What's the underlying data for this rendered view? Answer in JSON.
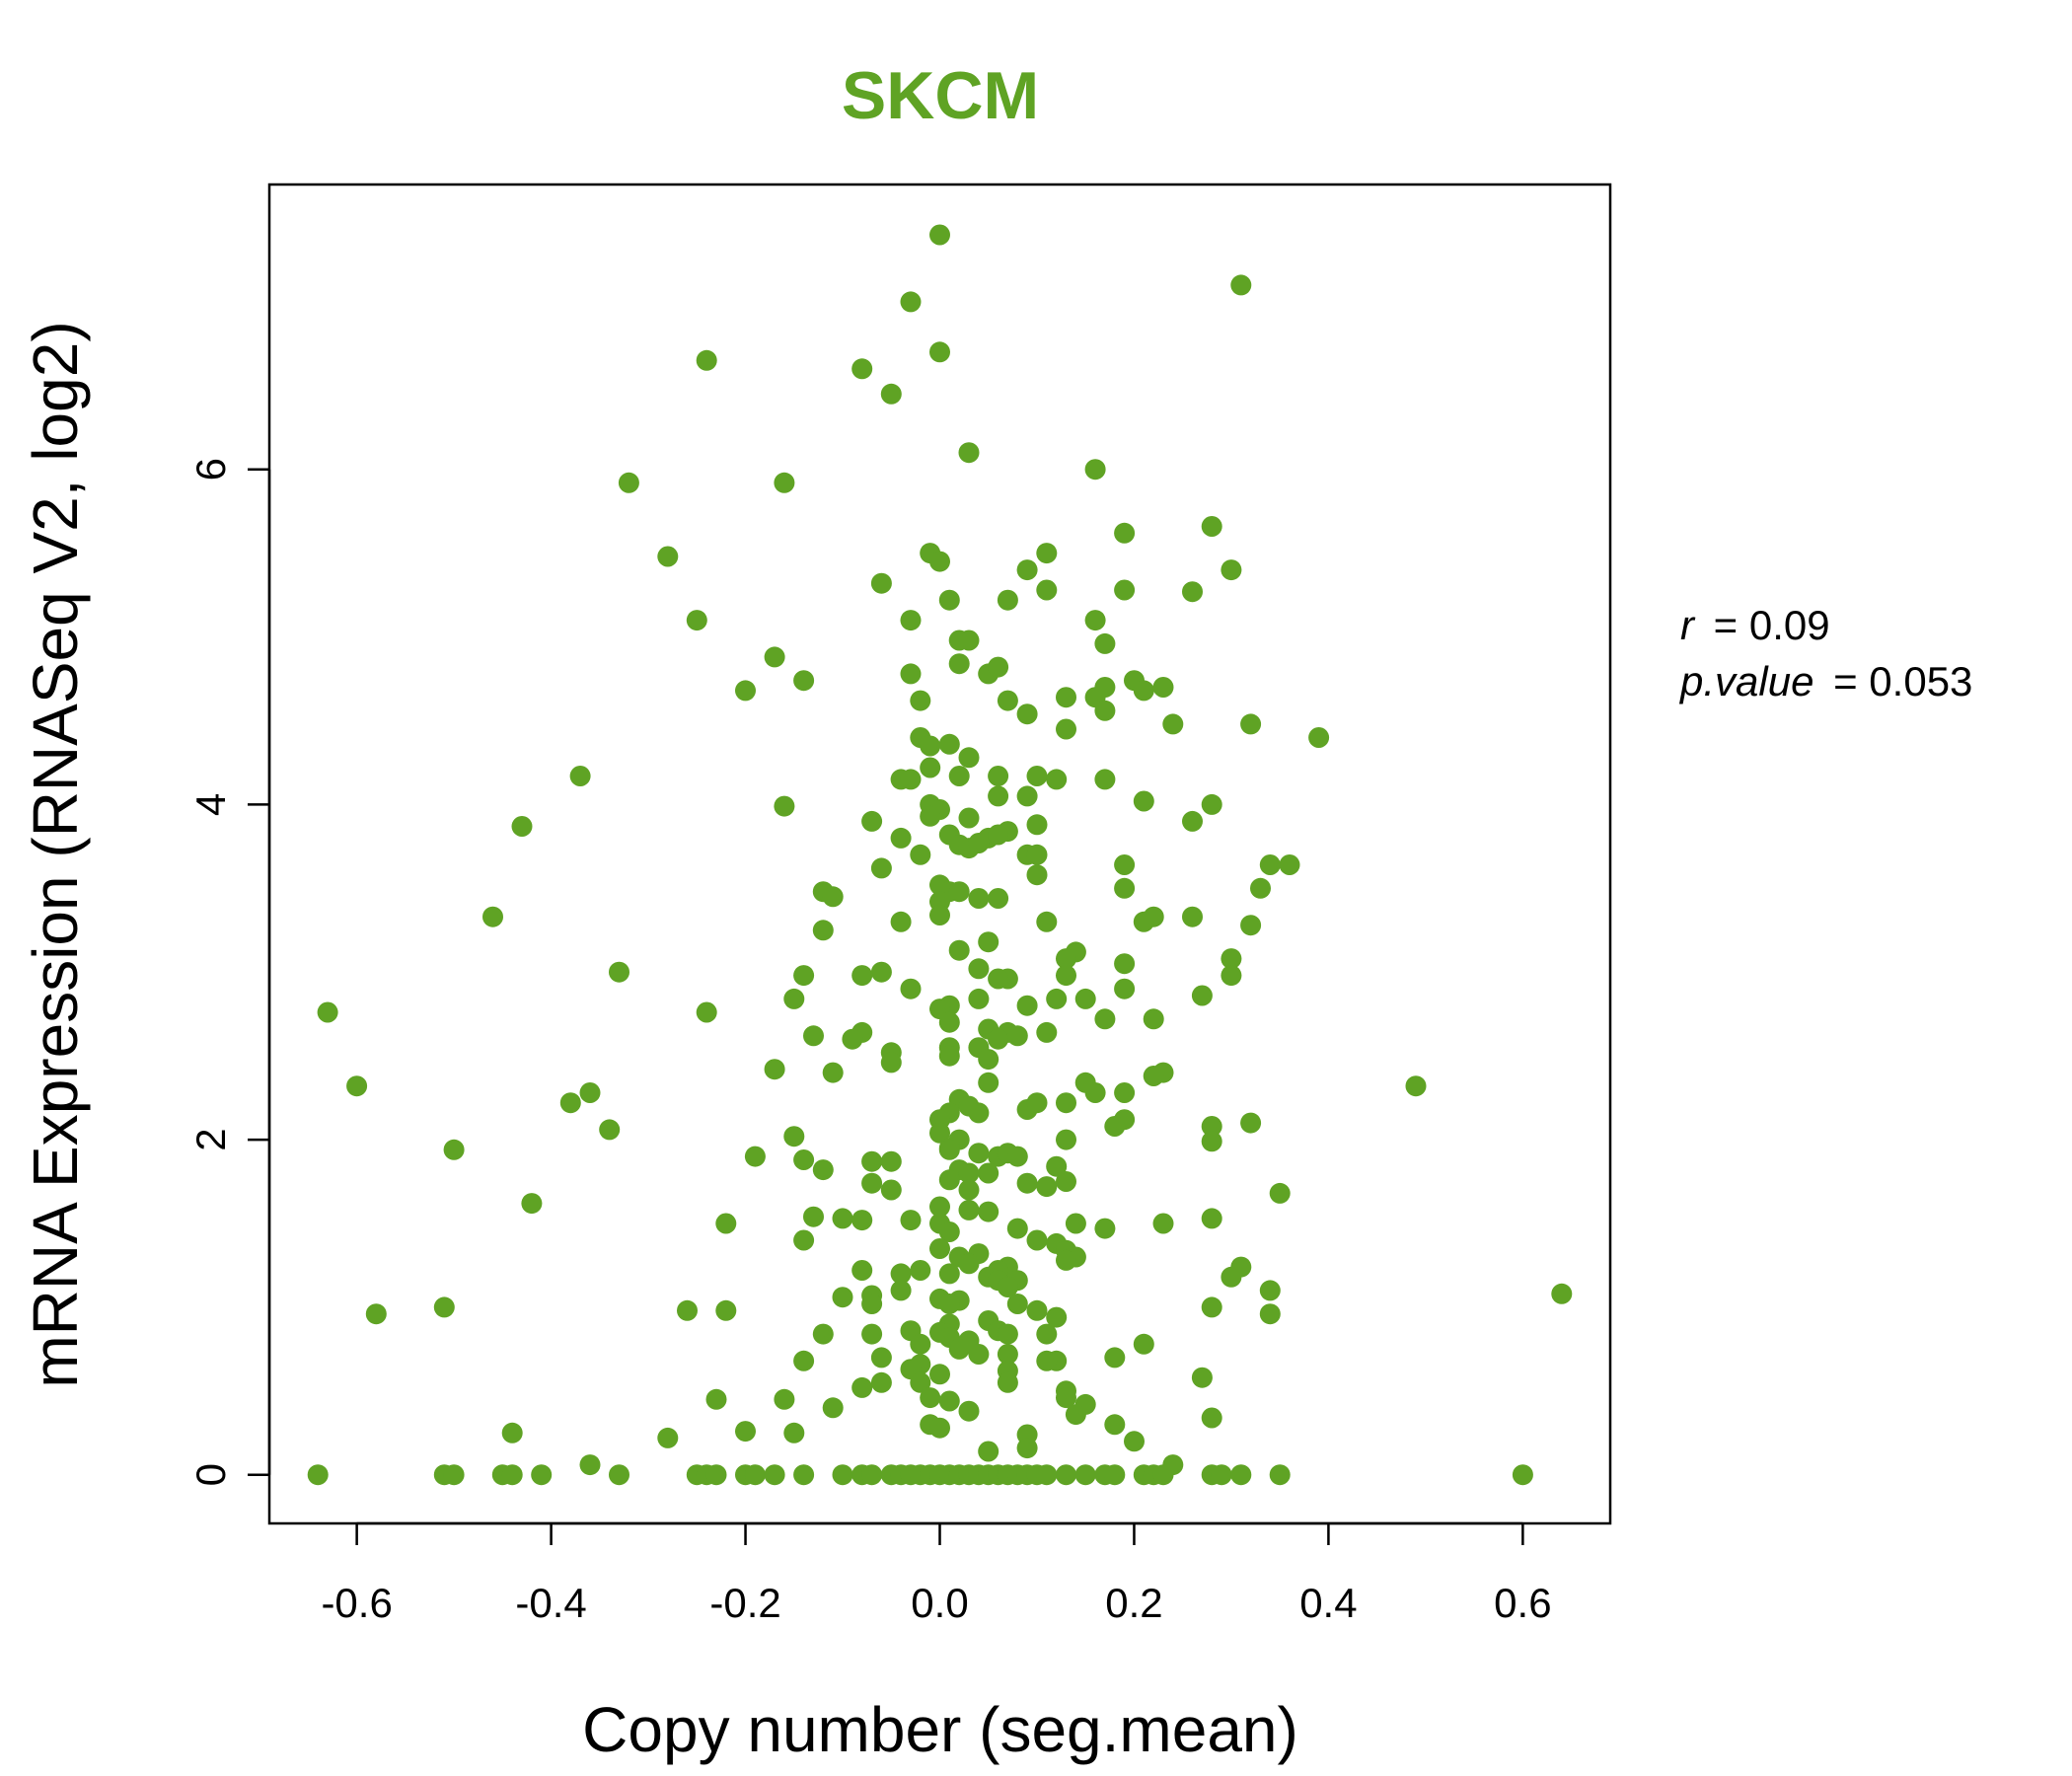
{
  "colors": {
    "point": "#5fa324",
    "title": "#5fa324",
    "axis": "#000000"
  },
  "stats": {
    "r_label": "r",
    "r_eq": "= 0.09",
    "p_label": "p.value",
    "p_eq": "= 0.053"
  },
  "chart_data": {
    "type": "scatter",
    "title": "SKCM",
    "xlabel": "Copy number (seg.mean)",
    "ylabel": "mRNA Expression (RNASeq V2, log2)",
    "xlim": [
      -0.69,
      0.69
    ],
    "ylim": [
      -0.29,
      7.7
    ],
    "xticks": [
      -0.6,
      -0.4,
      -0.2,
      0.0,
      0.2,
      0.4,
      0.6
    ],
    "xtick_labels": [
      "-0.6",
      "-0.4",
      "-0.2",
      "0.0",
      "0.2",
      "0.4",
      "0.6"
    ],
    "yticks": [
      0,
      2,
      4,
      6
    ],
    "ytick_labels": [
      "0",
      "2",
      "4",
      "6"
    ],
    "grid": false,
    "points": [
      [
        0.0,
        7.4
      ],
      [
        0.31,
        7.1
      ],
      [
        -0.03,
        7.0
      ],
      [
        0.0,
        6.7
      ],
      [
        -0.24,
        6.65
      ],
      [
        -0.08,
        6.6
      ],
      [
        -0.05,
        6.45
      ],
      [
        0.03,
        6.1
      ],
      [
        0.16,
        6.0
      ],
      [
        -0.32,
        5.92
      ],
      [
        -0.16,
        5.92
      ],
      [
        0.28,
        5.66
      ],
      [
        0.19,
        5.62
      ],
      [
        -0.28,
        5.48
      ],
      [
        -0.01,
        5.5
      ],
      [
        0.0,
        5.45
      ],
      [
        0.11,
        5.5
      ],
      [
        0.09,
        5.4
      ],
      [
        0.3,
        5.4
      ],
      [
        -0.06,
        5.32
      ],
      [
        0.11,
        5.28
      ],
      [
        0.19,
        5.28
      ],
      [
        0.26,
        5.27
      ],
      [
        0.01,
        5.22
      ],
      [
        0.07,
        5.22
      ],
      [
        -0.25,
        5.1
      ],
      [
        -0.03,
        5.1
      ],
      [
        0.16,
        5.1
      ],
      [
        0.02,
        4.98
      ],
      [
        0.03,
        4.98
      ],
      [
        0.17,
        4.96
      ],
      [
        -0.17,
        4.88
      ],
      [
        0.02,
        4.84
      ],
      [
        0.05,
        4.78
      ],
      [
        0.06,
        4.82
      ],
      [
        -0.03,
        4.78
      ],
      [
        -0.14,
        4.74
      ],
      [
        -0.2,
        4.68
      ],
      [
        0.2,
        4.74
      ],
      [
        0.17,
        4.7
      ],
      [
        0.21,
        4.68
      ],
      [
        0.23,
        4.7
      ],
      [
        0.16,
        4.64
      ],
      [
        0.13,
        4.64
      ],
      [
        -0.02,
        4.62
      ],
      [
        0.07,
        4.62
      ],
      [
        0.17,
        4.56
      ],
      [
        0.09,
        4.54
      ],
      [
        0.32,
        4.48
      ],
      [
        0.24,
        4.48
      ],
      [
        0.13,
        4.45
      ],
      [
        0.39,
        4.4
      ],
      [
        -0.02,
        4.4
      ],
      [
        -0.01,
        4.35
      ],
      [
        0.01,
        4.36
      ],
      [
        0.03,
        4.28
      ],
      [
        -0.01,
        4.22
      ],
      [
        -0.37,
        4.17
      ],
      [
        -0.04,
        4.15
      ],
      [
        -0.03,
        4.15
      ],
      [
        0.02,
        4.17
      ],
      [
        0.06,
        4.17
      ],
      [
        0.1,
        4.17
      ],
      [
        0.12,
        4.15
      ],
      [
        0.17,
        4.15
      ],
      [
        0.06,
        4.05
      ],
      [
        0.09,
        4.05
      ],
      [
        0.21,
        4.02
      ],
      [
        0.28,
        4.0
      ],
      [
        -0.16,
        3.99
      ],
      [
        -0.01,
        4.0
      ],
      [
        0.0,
        3.97
      ],
      [
        -0.01,
        3.93
      ],
      [
        0.03,
        3.92
      ],
      [
        0.26,
        3.9
      ],
      [
        -0.07,
        3.9
      ],
      [
        0.1,
        3.88
      ],
      [
        -0.43,
        3.87
      ],
      [
        0.01,
        3.82
      ],
      [
        0.07,
        3.84
      ],
      [
        -0.04,
        3.8
      ],
      [
        0.02,
        3.76
      ],
      [
        0.03,
        3.74
      ],
      [
        0.05,
        3.8
      ],
      [
        0.06,
        3.82
      ],
      [
        0.04,
        3.77
      ],
      [
        0.09,
        3.7
      ],
      [
        0.1,
        3.7
      ],
      [
        -0.02,
        3.7
      ],
      [
        0.36,
        3.64
      ],
      [
        0.34,
        3.64
      ],
      [
        0.19,
        3.64
      ],
      [
        -0.06,
        3.62
      ],
      [
        0.1,
        3.58
      ],
      [
        0.19,
        3.5
      ],
      [
        0.33,
        3.5
      ],
      [
        -0.12,
        3.48
      ],
      [
        -0.11,
        3.45
      ],
      [
        0.0,
        3.52
      ],
      [
        0.01,
        3.48
      ],
      [
        0.02,
        3.48
      ],
      [
        0.0,
        3.42
      ],
      [
        0.04,
        3.44
      ],
      [
        0.06,
        3.44
      ],
      [
        -0.46,
        3.33
      ],
      [
        0.22,
        3.33
      ],
      [
        0.26,
        3.33
      ],
      [
        0.21,
        3.3
      ],
      [
        0.0,
        3.34
      ],
      [
        -0.04,
        3.3
      ],
      [
        0.11,
        3.3
      ],
      [
        0.32,
        3.28
      ],
      [
        -0.12,
        3.25
      ],
      [
        0.05,
        3.18
      ],
      [
        0.02,
        3.13
      ],
      [
        0.14,
        3.12
      ],
      [
        0.13,
        3.08
      ],
      [
        0.3,
        3.08
      ],
      [
        0.19,
        3.05
      ],
      [
        0.04,
        3.02
      ],
      [
        -0.33,
        3.0
      ],
      [
        -0.06,
        3.0
      ],
      [
        -0.08,
        2.98
      ],
      [
        -0.14,
        2.98
      ],
      [
        0.07,
        2.96
      ],
      [
        0.06,
        2.96
      ],
      [
        0.3,
        2.98
      ],
      [
        0.13,
        2.98
      ],
      [
        0.19,
        2.9
      ],
      [
        -0.03,
        2.9
      ],
      [
        0.12,
        2.84
      ],
      [
        0.15,
        2.84
      ],
      [
        -0.15,
        2.84
      ],
      [
        0.04,
        2.84
      ],
      [
        0.27,
        2.86
      ],
      [
        0.01,
        2.8
      ],
      [
        0.09,
        2.8
      ],
      [
        0.0,
        2.78
      ],
      [
        -0.63,
        2.76
      ],
      [
        -0.24,
        2.76
      ],
      [
        0.22,
        2.72
      ],
      [
        0.17,
        2.72
      ],
      [
        0.01,
        2.7
      ],
      [
        0.05,
        2.66
      ],
      [
        0.07,
        2.64
      ],
      [
        0.11,
        2.64
      ],
      [
        0.06,
        2.6
      ],
      [
        0.08,
        2.62
      ],
      [
        -0.08,
        2.64
      ],
      [
        -0.13,
        2.62
      ],
      [
        -0.09,
        2.6
      ],
      [
        0.04,
        2.55
      ],
      [
        0.01,
        2.55
      ],
      [
        -0.05,
        2.52
      ],
      [
        0.01,
        2.5
      ],
      [
        0.05,
        2.48
      ],
      [
        -0.05,
        2.46
      ],
      [
        -0.11,
        2.4
      ],
      [
        -0.17,
        2.42
      ],
      [
        0.23,
        2.4
      ],
      [
        0.22,
        2.38
      ],
      [
        0.05,
        2.34
      ],
      [
        0.15,
        2.34
      ],
      [
        -0.6,
        2.32
      ],
      [
        0.49,
        2.32
      ],
      [
        0.16,
        2.28
      ],
      [
        0.19,
        2.28
      ],
      [
        -0.36,
        2.28
      ],
      [
        -0.38,
        2.22
      ],
      [
        0.13,
        2.22
      ],
      [
        0.09,
        2.18
      ],
      [
        0.1,
        2.22
      ],
      [
        0.02,
        2.24
      ],
      [
        0.03,
        2.2
      ],
      [
        0.04,
        2.16
      ],
      [
        0.01,
        2.16
      ],
      [
        0.0,
        2.12
      ],
      [
        0.19,
        2.12
      ],
      [
        0.28,
        2.08
      ],
      [
        0.32,
        2.1
      ],
      [
        -0.34,
        2.06
      ],
      [
        0.18,
        2.08
      ],
      [
        0.0,
        2.04
      ],
      [
        -0.15,
        2.02
      ],
      [
        0.02,
        2.0
      ],
      [
        0.13,
        2.0
      ],
      [
        0.28,
        1.99
      ],
      [
        0.01,
        1.95
      ],
      [
        -0.5,
        1.94
      ],
      [
        0.01,
        1.94
      ],
      [
        0.04,
        1.92
      ],
      [
        0.06,
        1.9
      ],
      [
        0.07,
        1.92
      ],
      [
        0.08,
        1.9
      ],
      [
        -0.19,
        1.9
      ],
      [
        -0.14,
        1.88
      ],
      [
        -0.07,
        1.87
      ],
      [
        -0.05,
        1.87
      ],
      [
        0.12,
        1.84
      ],
      [
        -0.12,
        1.82
      ],
      [
        0.02,
        1.82
      ],
      [
        0.03,
        1.8
      ],
      [
        0.05,
        1.8
      ],
      [
        0.01,
        1.76
      ],
      [
        -0.07,
        1.74
      ],
      [
        0.09,
        1.74
      ],
      [
        0.11,
        1.72
      ],
      [
        0.03,
        1.7
      ],
      [
        0.13,
        1.75
      ],
      [
        -0.05,
        1.7
      ],
      [
        0.35,
        1.68
      ],
      [
        -0.42,
        1.62
      ],
      [
        0.0,
        1.6
      ],
      [
        0.03,
        1.58
      ],
      [
        0.05,
        1.57
      ],
      [
        -0.13,
        1.54
      ],
      [
        -0.1,
        1.53
      ],
      [
        -0.08,
        1.52
      ],
      [
        0.14,
        1.5
      ],
      [
        0.28,
        1.53
      ],
      [
        0.23,
        1.5
      ],
      [
        -0.22,
        1.5
      ],
      [
        0.17,
        1.47
      ],
      [
        0.08,
        1.47
      ],
      [
        -0.03,
        1.52
      ],
      [
        0.0,
        1.5
      ],
      [
        0.01,
        1.45
      ],
      [
        -0.14,
        1.4
      ],
      [
        0.1,
        1.4
      ],
      [
        0.12,
        1.38
      ],
      [
        0.13,
        1.34
      ],
      [
        0.14,
        1.3
      ],
      [
        0.0,
        1.35
      ],
      [
        0.02,
        1.3
      ],
      [
        0.04,
        1.32
      ],
      [
        0.13,
        1.28
      ],
      [
        0.03,
        1.26
      ],
      [
        0.07,
        1.24
      ],
      [
        0.31,
        1.24
      ],
      [
        0.06,
        1.22
      ],
      [
        -0.02,
        1.22
      ],
      [
        -0.04,
        1.2
      ],
      [
        -0.08,
        1.22
      ],
      [
        0.01,
        1.2
      ],
      [
        0.05,
        1.18
      ],
      [
        0.06,
        1.16
      ],
      [
        0.08,
        1.16
      ],
      [
        0.07,
        1.12
      ],
      [
        0.3,
        1.18
      ],
      [
        0.34,
        1.1
      ],
      [
        -0.04,
        1.1
      ],
      [
        0.64,
        1.08
      ],
      [
        -0.07,
        1.07
      ],
      [
        -0.1,
        1.06
      ],
      [
        0.02,
        1.04
      ],
      [
        0.0,
        1.05
      ],
      [
        0.01,
        1.02
      ],
      [
        0.08,
        1.02
      ],
      [
        0.1,
        0.98
      ],
      [
        -0.07,
        1.02
      ],
      [
        -0.26,
        0.98
      ],
      [
        -0.22,
        0.98
      ],
      [
        -0.51,
        1.0
      ],
      [
        0.28,
        1.0
      ],
      [
        0.34,
        0.96
      ],
      [
        -0.58,
        0.96
      ],
      [
        0.12,
        0.94
      ],
      [
        0.05,
        0.92
      ],
      [
        0.01,
        0.9
      ],
      [
        0.0,
        0.85
      ],
      [
        0.06,
        0.86
      ],
      [
        0.07,
        0.84
      ],
      [
        -0.03,
        0.86
      ],
      [
        0.11,
        0.84
      ],
      [
        -0.12,
        0.84
      ],
      [
        -0.07,
        0.84
      ],
      [
        0.01,
        0.82
      ],
      [
        0.03,
        0.8
      ],
      [
        0.21,
        0.78
      ],
      [
        -0.02,
        0.78
      ],
      [
        0.02,
        0.75
      ],
      [
        0.04,
        0.72
      ],
      [
        0.07,
        0.72
      ],
      [
        0.18,
        0.7
      ],
      [
        0.12,
        0.68
      ],
      [
        0.11,
        0.68
      ],
      [
        -0.06,
        0.7
      ],
      [
        -0.14,
        0.68
      ],
      [
        -0.02,
        0.66
      ],
      [
        -0.03,
        0.63
      ],
      [
        0.0,
        0.6
      ],
      [
        0.07,
        0.62
      ],
      [
        0.27,
        0.58
      ],
      [
        -0.02,
        0.55
      ],
      [
        0.07,
        0.55
      ],
      [
        -0.08,
        0.52
      ],
      [
        -0.06,
        0.55
      ],
      [
        0.13,
        0.5
      ],
      [
        0.13,
        0.46
      ],
      [
        -0.23,
        0.45
      ],
      [
        -0.16,
        0.45
      ],
      [
        0.01,
        0.44
      ],
      [
        -0.01,
        0.46
      ],
      [
        -0.11,
        0.4
      ],
      [
        0.03,
        0.38
      ],
      [
        0.15,
        0.42
      ],
      [
        0.14,
        0.36
      ],
      [
        0.28,
        0.34
      ],
      [
        0.18,
        0.3
      ],
      [
        -0.01,
        0.3
      ],
      [
        0.0,
        0.28
      ],
      [
        -0.44,
        0.25
      ],
      [
        -0.2,
        0.26
      ],
      [
        -0.15,
        0.25
      ],
      [
        0.09,
        0.24
      ],
      [
        -0.28,
        0.22
      ],
      [
        0.2,
        0.2
      ],
      [
        0.09,
        0.16
      ],
      [
        0.05,
        0.14
      ],
      [
        -0.36,
        0.06
      ],
      [
        0.24,
        0.06
      ],
      [
        -0.64,
        0.0
      ],
      [
        -0.51,
        0.0
      ],
      [
        -0.5,
        0.0
      ],
      [
        -0.45,
        0.0
      ],
      [
        -0.44,
        0.0
      ],
      [
        -0.41,
        0.0
      ],
      [
        -0.33,
        0.0
      ],
      [
        -0.25,
        0.0
      ],
      [
        -0.24,
        0.0
      ],
      [
        -0.23,
        0.0
      ],
      [
        -0.2,
        0.0
      ],
      [
        -0.19,
        0.0
      ],
      [
        -0.17,
        0.0
      ],
      [
        -0.14,
        0.0
      ],
      [
        -0.1,
        0.0
      ],
      [
        -0.08,
        0.0
      ],
      [
        -0.07,
        0.0
      ],
      [
        -0.05,
        0.0
      ],
      [
        -0.04,
        0.0
      ],
      [
        -0.03,
        0.0
      ],
      [
        -0.02,
        0.0
      ],
      [
        -0.01,
        0.0
      ],
      [
        0.0,
        0.0
      ],
      [
        0.01,
        0.0
      ],
      [
        0.02,
        0.0
      ],
      [
        0.03,
        0.0
      ],
      [
        0.04,
        0.0
      ],
      [
        0.05,
        0.0
      ],
      [
        0.06,
        0.0
      ],
      [
        0.07,
        0.0
      ],
      [
        0.08,
        0.0
      ],
      [
        0.09,
        0.0
      ],
      [
        0.1,
        0.0
      ],
      [
        0.11,
        0.0
      ],
      [
        0.13,
        0.0
      ],
      [
        0.15,
        0.0
      ],
      [
        0.17,
        0.0
      ],
      [
        0.18,
        0.0
      ],
      [
        0.21,
        0.0
      ],
      [
        0.22,
        0.0
      ],
      [
        0.23,
        0.0
      ],
      [
        0.28,
        0.0
      ],
      [
        0.29,
        0.0
      ],
      [
        0.31,
        0.0
      ],
      [
        0.35,
        0.0
      ],
      [
        0.6,
        0.0
      ]
    ]
  }
}
